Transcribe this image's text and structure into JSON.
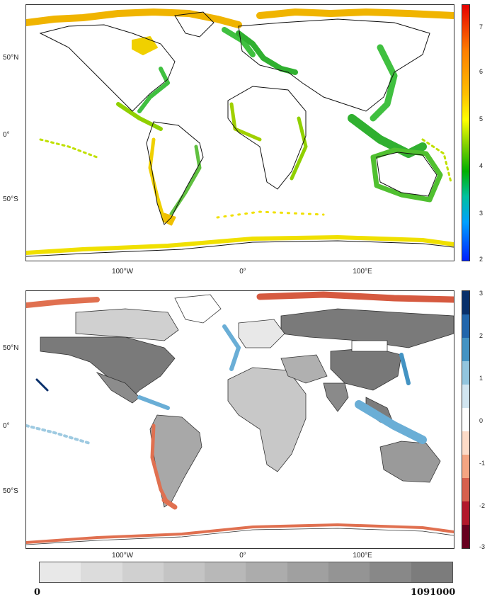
{
  "maps": [
    {
      "lat_labels": [
        "50°N",
        "0°",
        "50°S"
      ],
      "lon_labels": [
        "100°W",
        "0°",
        "100°E"
      ],
      "colorbar": {
        "ticks": [
          "7",
          "6",
          "5",
          "4",
          "3",
          "2"
        ],
        "colors": [
          "#e60000",
          "#ff7f00",
          "#ffc000",
          "#ffff00",
          "#7fd000",
          "#00b000",
          "#00c0a0",
          "#00a0ff",
          "#0020ff"
        ]
      }
    },
    {
      "lat_labels": [
        "50°N",
        "0°",
        "50°S"
      ],
      "lon_labels": [
        "100°W",
        "0°",
        "100°E"
      ],
      "colorbar": {
        "ticks": [
          "3",
          "2",
          "1",
          "0",
          "-1",
          "-2",
          "-3"
        ],
        "colors": [
          "#08306b",
          "#2166ac",
          "#4393c3",
          "#92c5de",
          "#d1e5f0",
          "#ffffff",
          "#fddbc7",
          "#f4a582",
          "#d6604d",
          "#b2182b",
          "#67001f"
        ]
      }
    }
  ],
  "horizontal_colorbar": {
    "min_label": "0",
    "max_label": "1091000",
    "colors": [
      "#e8e8e8",
      "#dcdcdc",
      "#d0d0d0",
      "#c4c4c4",
      "#b8b8b8",
      "#acacac",
      "#a0a0a0",
      "#949494",
      "#888888",
      "#7c7c7c"
    ]
  }
}
